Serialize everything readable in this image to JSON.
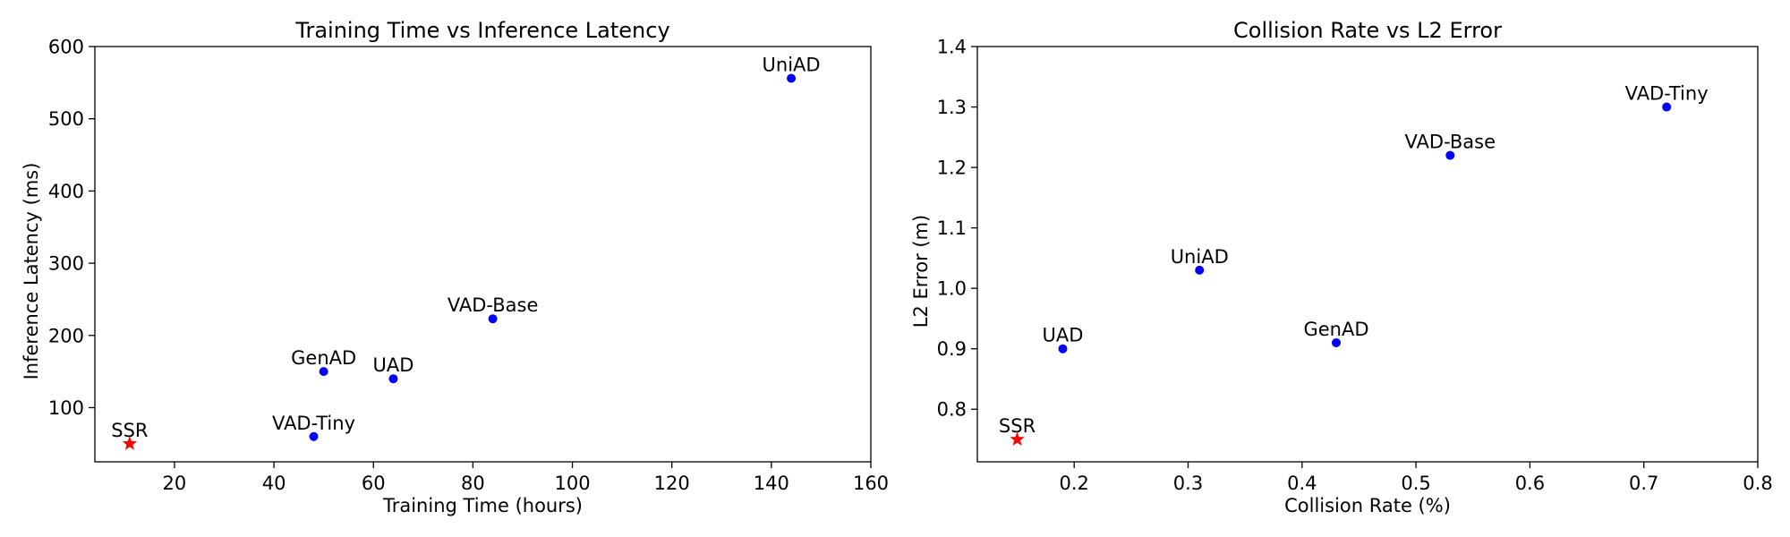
{
  "chart_data": [
    {
      "type": "scatter",
      "title": "Training Time vs Inference Latency",
      "xlabel": "Training Time (hours)",
      "ylabel": "Inference Latency (ms)",
      "xlim": [
        4,
        160
      ],
      "ylim": [
        25,
        600
      ],
      "xticks": [
        20,
        40,
        60,
        80,
        100,
        120,
        140,
        160
      ],
      "yticks": [
        100,
        200,
        300,
        400,
        500,
        600
      ],
      "grid": false,
      "points": [
        {
          "label": "UniAD",
          "x": 144,
          "y": 556,
          "marker": "circle",
          "color": "#0000ff"
        },
        {
          "label": "VAD-Base",
          "x": 84,
          "y": 223,
          "marker": "circle",
          "color": "#0000ff"
        },
        {
          "label": "GenAD",
          "x": 50,
          "y": 150,
          "marker": "circle",
          "color": "#0000ff"
        },
        {
          "label": "UAD",
          "x": 64,
          "y": 140,
          "marker": "circle",
          "color": "#0000ff"
        },
        {
          "label": "VAD-Tiny",
          "x": 48,
          "y": 60,
          "marker": "circle",
          "color": "#0000ff"
        },
        {
          "label": "SSR",
          "x": 11,
          "y": 50,
          "marker": "star",
          "color": "#ff0000"
        }
      ]
    },
    {
      "type": "scatter",
      "title": "Collision Rate vs L2 Error",
      "xlabel": "Collision Rate (%)",
      "ylabel": "L2 Error (m)",
      "xlim": [
        0.115,
        0.8
      ],
      "ylim": [
        0.713,
        1.4
      ],
      "xticks": [
        0.2,
        0.3,
        0.4,
        0.5,
        0.6,
        0.7,
        0.8
      ],
      "yticks": [
        0.8,
        0.9,
        1.0,
        1.1,
        1.2,
        1.3,
        1.4
      ],
      "tick_decimals": 1,
      "grid": false,
      "points": [
        {
          "label": "VAD-Tiny",
          "x": 0.72,
          "y": 1.3,
          "marker": "circle",
          "color": "#0000ff"
        },
        {
          "label": "VAD-Base",
          "x": 0.53,
          "y": 1.22,
          "marker": "circle",
          "color": "#0000ff"
        },
        {
          "label": "UniAD",
          "x": 0.31,
          "y": 1.03,
          "marker": "circle",
          "color": "#0000ff"
        },
        {
          "label": "GenAD",
          "x": 0.43,
          "y": 0.91,
          "marker": "circle",
          "color": "#0000ff"
        },
        {
          "label": "UAD",
          "x": 0.19,
          "y": 0.9,
          "marker": "circle",
          "color": "#0000ff"
        },
        {
          "label": "SSR",
          "x": 0.15,
          "y": 0.75,
          "marker": "star",
          "color": "#ff0000"
        }
      ]
    }
  ]
}
